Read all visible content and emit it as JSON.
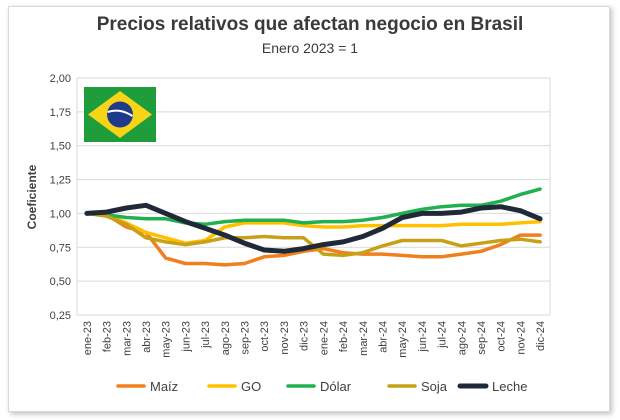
{
  "chart_data": {
    "type": "line",
    "title": "Precios relativos que afectan negocio en Brasil",
    "subtitle": "Enero 2023 = 1",
    "ylabel": "Coeficiente",
    "xlabel": "",
    "ylim": [
      0.25,
      2.0
    ],
    "yticks": [
      "0,25",
      "0,50",
      "0,75",
      "1,00",
      "1,25",
      "1,50",
      "1,75",
      "2,00"
    ],
    "categories": [
      "ene-23",
      "feb-23",
      "mar-23",
      "abr-23",
      "may-23",
      "jun-23",
      "jul-23",
      "ago-23",
      "sep-23",
      "oct-23",
      "nov-23",
      "dic-23",
      "ene-24",
      "feb-24",
      "mar-24",
      "abr-24",
      "may-24",
      "jun-24",
      "jul-24",
      "ago-24",
      "sep-24",
      "oct-24",
      "nov-24",
      "dic-24"
    ],
    "grid": true,
    "legend_position": "bottom",
    "flag_icon": "brazil-flag-icon",
    "series": [
      {
        "name": "Maíz",
        "color": "#f07f1e",
        "values": [
          1.0,
          0.99,
          0.9,
          0.86,
          0.67,
          0.63,
          0.63,
          0.62,
          0.63,
          0.68,
          0.69,
          0.72,
          0.74,
          0.71,
          0.7,
          0.7,
          0.69,
          0.68,
          0.68,
          0.7,
          0.72,
          0.77,
          0.84,
          0.84
        ]
      },
      {
        "name": "GO",
        "color": "#ffc000",
        "values": [
          1.0,
          0.99,
          0.93,
          0.86,
          0.82,
          0.78,
          0.8,
          0.9,
          0.93,
          0.93,
          0.93,
          0.91,
          0.9,
          0.9,
          0.91,
          0.91,
          0.91,
          0.91,
          0.91,
          0.92,
          0.92,
          0.92,
          0.93,
          0.94
        ]
      },
      {
        "name": "Dólar",
        "color": "#21b04f",
        "values": [
          1.0,
          0.99,
          0.97,
          0.96,
          0.96,
          0.93,
          0.92,
          0.94,
          0.95,
          0.95,
          0.95,
          0.93,
          0.94,
          0.94,
          0.95,
          0.97,
          1.0,
          1.03,
          1.05,
          1.06,
          1.06,
          1.09,
          1.14,
          1.18
        ]
      },
      {
        "name": "Soja",
        "color": "#c8a017",
        "values": [
          1.0,
          0.98,
          0.92,
          0.82,
          0.79,
          0.77,
          0.79,
          0.82,
          0.82,
          0.83,
          0.82,
          0.82,
          0.7,
          0.69,
          0.71,
          0.76,
          0.8,
          0.8,
          0.8,
          0.76,
          0.78,
          0.8,
          0.81,
          0.79
        ]
      },
      {
        "name": "Leche",
        "color": "#1f2937",
        "values": [
          1.0,
          1.01,
          1.04,
          1.06,
          1.0,
          0.94,
          0.89,
          0.84,
          0.78,
          0.73,
          0.72,
          0.74,
          0.77,
          0.79,
          0.83,
          0.89,
          0.97,
          1.0,
          1.0,
          1.01,
          1.04,
          1.05,
          1.02,
          0.96
        ]
      }
    ]
  }
}
